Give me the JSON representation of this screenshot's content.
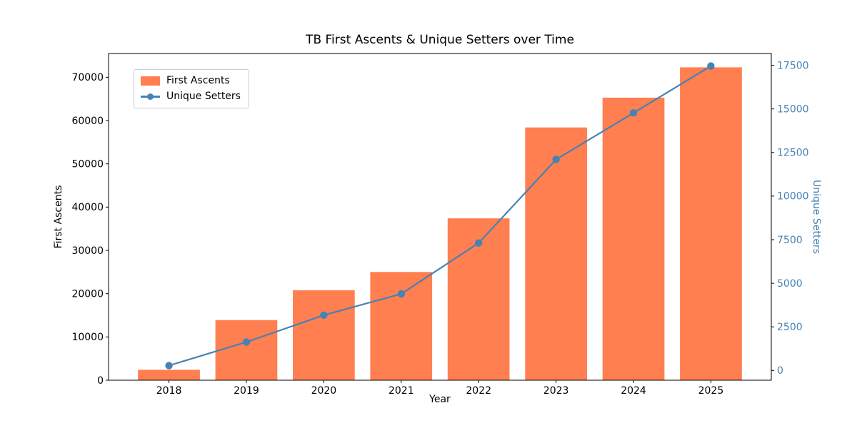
{
  "chart_data": {
    "type": "bar",
    "title": "TB First Ascents & Unique Setters over Time",
    "xlabel": "Year",
    "categories": [
      2018,
      2019,
      2020,
      2021,
      2022,
      2023,
      2024,
      2025
    ],
    "series": [
      {
        "name": "First Ascents",
        "type": "bar",
        "axis": "left",
        "color": "#FF7F50",
        "values": [
          2400,
          13900,
          20800,
          25000,
          37400,
          58400,
          65300,
          72300
        ]
      },
      {
        "name": "Unique Setters",
        "type": "line",
        "axis": "right",
        "color": "#4682B4",
        "marker": "circle",
        "values": [
          280,
          1630,
          3170,
          4390,
          7310,
          12100,
          14770,
          17460
        ]
      }
    ],
    "axes": {
      "x": {
        "label": "Year",
        "lim": [
          2017.22,
          2025.78
        ],
        "ticks": [
          2018,
          2019,
          2020,
          2021,
          2022,
          2023,
          2024,
          2025
        ],
        "color": "#000000"
      },
      "left": {
        "label": "First Ascents",
        "lim": [
          0,
          75500
        ],
        "ticks": [
          0,
          10000,
          20000,
          30000,
          40000,
          50000,
          60000,
          70000
        ],
        "color": "#000000"
      },
      "right": {
        "label": "Unique Setters",
        "lim": [
          -560,
          18180
        ],
        "ticks": [
          0,
          2500,
          5000,
          7500,
          10000,
          12500,
          15000,
          17500
        ],
        "color": "#4682B4"
      }
    },
    "bar_width": 0.8,
    "grid": false,
    "legend": {
      "position": "upper-left",
      "entries": [
        "First Ascents",
        "Unique Setters"
      ]
    },
    "background": "#FFFFFF",
    "spine_color": "#000000"
  }
}
